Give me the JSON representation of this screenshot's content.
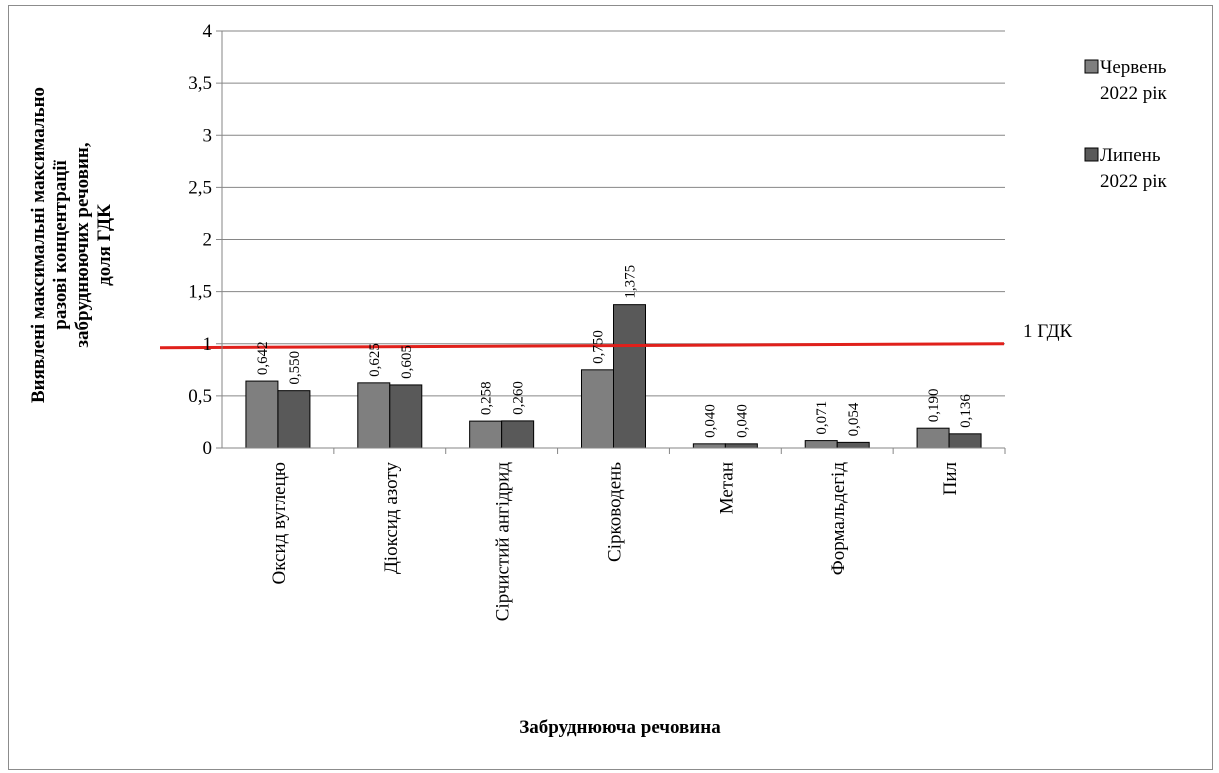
{
  "chart_data": {
    "type": "bar",
    "categories": [
      "Оксид вуглецю",
      "Діоксид азоту",
      "Сірчистий ангідрид",
      "Сірководень",
      "Метан",
      "Формальдегід",
      "Пил"
    ],
    "series": [
      {
        "name": "Червень 2022 рік",
        "values": [
          0.642,
          0.625,
          0.258,
          0.75,
          0.04,
          0.071,
          0.19
        ],
        "labels": [
          "0,642",
          "0,625",
          "0,258",
          "0,750",
          "0,040",
          "0,071",
          "0,190"
        ],
        "color": "#7f7f7f"
      },
      {
        "name": "Липень 2022 рік",
        "values": [
          0.55,
          0.605,
          0.26,
          1.375,
          0.04,
          0.054,
          0.136
        ],
        "labels": [
          "0,550",
          "0,605",
          "0,260",
          "1,375",
          "0,040",
          "0,054",
          "0,136"
        ],
        "color": "#595959"
      }
    ],
    "y_ticks": [
      "0",
      "0,5",
      "1",
      "1,5",
      "2",
      "2,5",
      "3",
      "3,5",
      "4"
    ],
    "ylim": [
      0,
      4
    ],
    "ylabel_lines": [
      "Виявлені максимальні  максимально",
      "разові  концентрації",
      "забруднюючих речовин,",
      "доля  ГДК"
    ],
    "xlabel": "Забруднююча речовина",
    "grid": true,
    "legend_position": "right",
    "reference_line": {
      "value": 1,
      "label": "1 ГДК",
      "color": "#e0201b"
    }
  }
}
